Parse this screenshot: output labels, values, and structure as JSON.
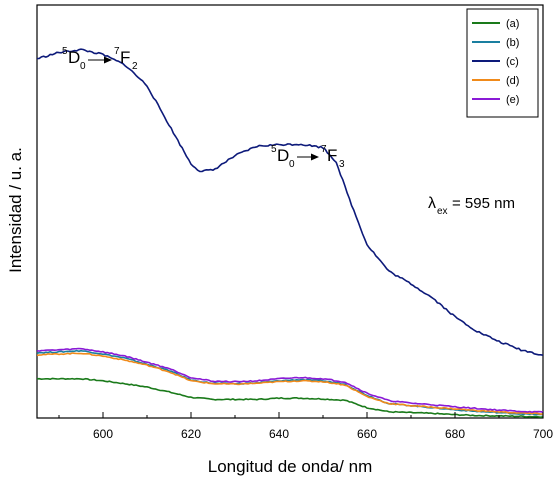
{
  "chart_data": {
    "type": "line",
    "xlabel": "Longitud de onda/ nm",
    "ylabel": "Intensidad / u. a.",
    "xlim": [
      585,
      700
    ],
    "ylim": [
      0,
      100
    ],
    "x_ticks": [
      600,
      620,
      640,
      660,
      680,
      700
    ],
    "y_ticks_shown": false,
    "grid": false,
    "legend": {
      "placement": "top-right",
      "entries": [
        "(a)",
        "(b)",
        "(c)",
        "(d)",
        "(e)"
      ]
    },
    "annotations": {
      "transition1": {
        "upper": "5",
        "d": "D",
        "sub": "0",
        "upper2": "7",
        "f": "F",
        "sub2": "2"
      },
      "transition2": {
        "upper": "5",
        "d": "D",
        "sub": "0",
        "upper2": "7",
        "f": "F",
        "sub2": "3"
      },
      "excitation": {
        "lambda": "λ",
        "sub": "ex",
        "rest": "= 595 nm"
      }
    },
    "series": [
      {
        "name": "(a)",
        "color": "#1a7a1a",
        "x": [
          585,
          590,
          595,
          600,
          605,
          610,
          615,
          620,
          625,
          630,
          635,
          640,
          645,
          650,
          655,
          660,
          665,
          670,
          675,
          680,
          685,
          690,
          695,
          700
        ],
        "y": [
          9.5,
          9.5,
          9.5,
          9.0,
          8.3,
          7.5,
          6.3,
          5.0,
          4.5,
          4.5,
          4.5,
          4.8,
          4.8,
          4.6,
          4.3,
          2.5,
          1.5,
          1.3,
          1.1,
          0.8,
          0.6,
          0.5,
          0.4,
          0.3
        ]
      },
      {
        "name": "(b)",
        "color": "#1a7fa0",
        "x": [
          585,
          590,
          595,
          600,
          605,
          610,
          615,
          620,
          625,
          630,
          635,
          640,
          645,
          650,
          655,
          660,
          665,
          670,
          675,
          680,
          685,
          690,
          695,
          700
        ],
        "y": [
          15.8,
          16.0,
          16.3,
          15.5,
          14.5,
          13.0,
          11.5,
          9.2,
          8.4,
          8.3,
          8.5,
          9.0,
          9.3,
          9.0,
          8.2,
          5.5,
          3.5,
          3.0,
          2.5,
          2.0,
          1.6,
          1.3,
          1.0,
          0.8
        ]
      },
      {
        "name": "(c)",
        "color": "#0d1a7a",
        "x": [
          585,
          590,
          595,
          600,
          605,
          610,
          615,
          620,
          622,
          625,
          630,
          635,
          640,
          645,
          650,
          653,
          656,
          660,
          665,
          670,
          675,
          680,
          685,
          690,
          695,
          700
        ],
        "y": [
          87.0,
          88.5,
          89.2,
          88.0,
          85.5,
          80.5,
          71.0,
          61.5,
          59.8,
          60.0,
          63.5,
          65.8,
          66.2,
          66.3,
          65.5,
          62.0,
          53.0,
          42.0,
          35.5,
          32.5,
          29.0,
          24.5,
          21.0,
          18.5,
          16.5,
          15.2
        ]
      },
      {
        "name": "(d)",
        "color": "#f08a1a",
        "x": [
          585,
          590,
          595,
          600,
          605,
          610,
          615,
          620,
          625,
          630,
          635,
          640,
          645,
          650,
          655,
          660,
          665,
          670,
          675,
          680,
          685,
          690,
          695,
          700
        ],
        "y": [
          15.3,
          15.5,
          15.7,
          15.0,
          14.0,
          12.8,
          11.2,
          9.0,
          8.3,
          8.2,
          8.4,
          8.8,
          9.0,
          8.8,
          8.0,
          5.2,
          3.5,
          3.0,
          2.6,
          2.2,
          1.8,
          1.5,
          1.2,
          1.0
        ]
      },
      {
        "name": "(e)",
        "color": "#8a1ad6",
        "x": [
          585,
          590,
          595,
          600,
          605,
          610,
          615,
          620,
          625,
          630,
          635,
          640,
          645,
          650,
          655,
          660,
          665,
          670,
          675,
          680,
          685,
          690,
          695,
          700
        ],
        "y": [
          16.3,
          16.5,
          16.8,
          16.0,
          15.0,
          13.5,
          12.0,
          9.8,
          8.9,
          8.8,
          9.0,
          9.5,
          9.8,
          9.5,
          8.7,
          6.0,
          4.2,
          3.6,
          3.2,
          2.7,
          2.3,
          1.9,
          1.6,
          1.4
        ]
      }
    ]
  }
}
